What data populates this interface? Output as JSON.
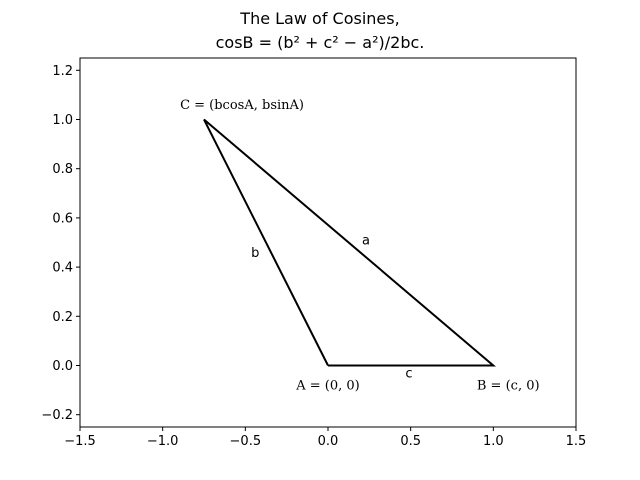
{
  "chart_data": {
    "type": "line",
    "title_line1": "The Law of Cosines,",
    "title_line2": "cosB = (b² + c² − a²)/2bc.",
    "xlabel": "",
    "ylabel": "",
    "xlim": [
      -1.5,
      1.5
    ],
    "ylim": [
      -0.25,
      1.25
    ],
    "x_ticks": [
      -1.5,
      -1.0,
      -0.5,
      0.0,
      0.5,
      1.0,
      1.5
    ],
    "y_ticks": [
      -0.2,
      0.0,
      0.2,
      0.4,
      0.6,
      0.8,
      1.0,
      1.2
    ],
    "grid": false,
    "line_color": "#000000",
    "series": [
      {
        "x": [
          0,
          1,
          -0.75,
          0
        ],
        "y": [
          0,
          0,
          1,
          0
        ]
      }
    ],
    "annotations": [
      {
        "id": "vertex-a",
        "text": "A = (0, 0)",
        "x": 0.0,
        "y": -0.08,
        "anchor": "middle",
        "math": true
      },
      {
        "id": "vertex-b",
        "text": "B = (c, 0)",
        "x": 1.09,
        "y": -0.08,
        "anchor": "middle",
        "math": true
      },
      {
        "id": "vertex-c",
        "text": "C = (bcosA, bsinA)",
        "x": -0.52,
        "y": 1.06,
        "anchor": "middle",
        "math": true
      },
      {
        "id": "side-a",
        "text": "a",
        "x": 0.23,
        "y": 0.51,
        "anchor": "middle",
        "math": false
      },
      {
        "id": "side-b",
        "text": "b",
        "x": -0.44,
        "y": 0.46,
        "anchor": "middle",
        "math": false
      },
      {
        "id": "side-c",
        "text": "c",
        "x": 0.49,
        "y": -0.03,
        "anchor": "middle",
        "math": false
      }
    ]
  }
}
